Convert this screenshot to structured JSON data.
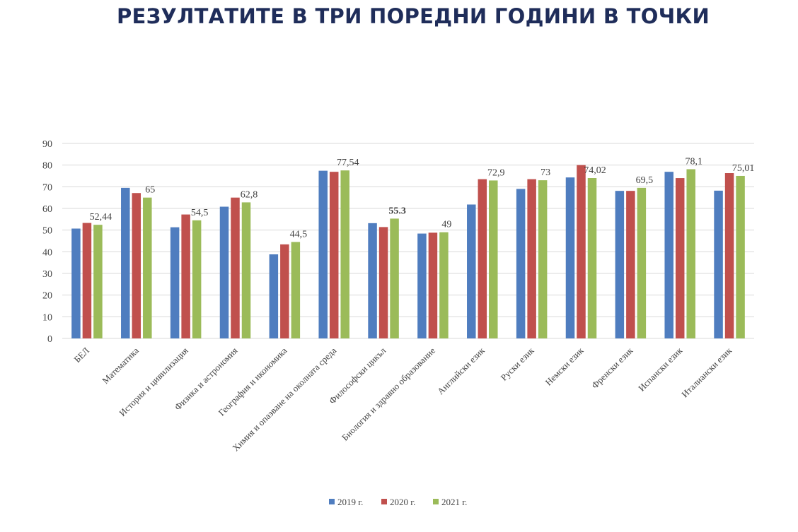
{
  "title": "РЕЗУЛТАТИТЕ В ТРИ ПОРЕДНИ ГОДИНИ В ТОЧКИ",
  "colors": {
    "s2019": "#4f7dbf",
    "s2020": "#c0504d",
    "s2021": "#9bbb59",
    "grid": "#d9d9d9",
    "title": "#1f2d5a"
  },
  "chart_data": {
    "type": "bar",
    "title": "",
    "xlabel": "",
    "ylabel": "",
    "ylim": [
      0,
      90
    ],
    "yticks": [
      "0",
      "10",
      "20",
      "30",
      "40",
      "50",
      "60",
      "70",
      "80",
      "90"
    ],
    "grid": true,
    "legend_position": "bottom",
    "categories": [
      "БЕЛ",
      "Математика",
      "История и цивилизация",
      "Физика и астрономия",
      "География и икономика",
      "Химия и опазване на околната среда",
      "Философски цикъл",
      "Биология и здравно образование",
      "Английски език",
      "Руски език",
      "Немски език",
      "Френски език",
      "Испански език",
      "Италиански език"
    ],
    "series": [
      {
        "name": "2019 г.",
        "values": [
          50.7,
          69.5,
          51.3,
          60.8,
          38.8,
          77.4,
          53.2,
          48.4,
          61.8,
          69.0,
          74.3,
          68.1,
          76.9,
          68.2
        ]
      },
      {
        "name": "2020 г.",
        "values": [
          53.3,
          67.1,
          57.2,
          65.0,
          43.4,
          76.9,
          51.4,
          48.8,
          73.5,
          73.5,
          80.0,
          68.1,
          74.0,
          76.3
        ]
      },
      {
        "name": "2021 г.",
        "values": [
          52.44,
          65,
          54.5,
          62.8,
          44.5,
          77.54,
          55.3,
          49,
          72.9,
          73,
          74.02,
          69.5,
          78.1,
          75.01
        ]
      }
    ],
    "data_labels": [
      "52,44",
      "65",
      "54,5",
      "62,8",
      "44,5",
      "77,54",
      "55.3",
      "49",
      "72,9",
      "73",
      "74,02",
      "69,5",
      "78,1",
      "75,01"
    ]
  }
}
